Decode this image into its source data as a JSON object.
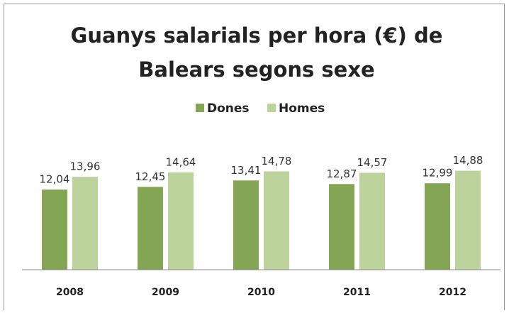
{
  "chart_data": {
    "type": "bar",
    "title": [
      "Guanys salarials per hora (€) de",
      "Balears segons sexe"
    ],
    "categories": [
      "2008",
      "2009",
      "2010",
      "2011",
      "2012"
    ],
    "series": [
      {
        "name": "Dones",
        "color": "#84a654",
        "values": [
          12.04,
          12.45,
          13.41,
          12.87,
          12.99
        ],
        "value_labels": [
          "12,04",
          "12,45",
          "13,41",
          "12,87",
          "12,99"
        ]
      },
      {
        "name": "Homes",
        "color": "#bcd49b",
        "values": [
          13.96,
          14.64,
          14.78,
          14.57,
          14.88
        ],
        "value_labels": [
          "13,96",
          "14,64",
          "14,78",
          "14,57",
          "14,88"
        ]
      }
    ],
    "ylim": [
      0,
      16
    ],
    "legend": "top"
  }
}
